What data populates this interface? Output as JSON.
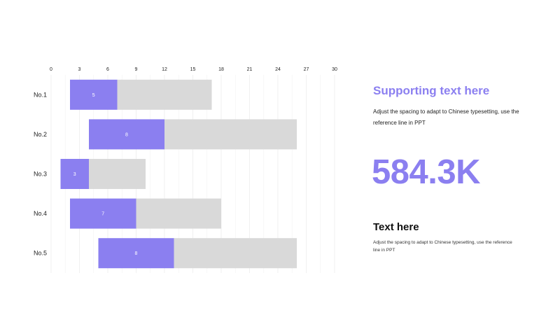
{
  "chart_data": {
    "type": "bar",
    "orientation": "horizontal",
    "stacked": true,
    "categories": [
      "No.1",
      "No.2",
      "No.3",
      "No.4",
      "No.5"
    ],
    "series": [
      {
        "values": [
          2,
          4,
          1,
          2,
          5
        ],
        "color": "transparent"
      },
      {
        "values": [
          5,
          8,
          3,
          7,
          8
        ],
        "color": "#8b7ff0",
        "show_labels": true
      },
      {
        "values": [
          10,
          14,
          6,
          9,
          13
        ],
        "color": "#d9d9d9"
      }
    ],
    "xlim": [
      0,
      30
    ],
    "xticks": [
      0,
      3,
      6,
      9,
      12,
      15,
      18,
      21,
      24,
      27,
      30
    ],
    "x_axis_position": "top",
    "grid": true
  },
  "panel": {
    "heading": "Supporting text here",
    "text": "Adjust the spacing to adapt to Chinese typesetting, use the reference line in PPT",
    "big_number": "584.3K",
    "subheading": "Text here",
    "subtext": "Adjust the spacing to adapt to Chinese typesetting, use the reference line in PPT"
  },
  "colors": {
    "accent": "#8b7ff0",
    "bar_remaining": "#d9d9d9"
  }
}
